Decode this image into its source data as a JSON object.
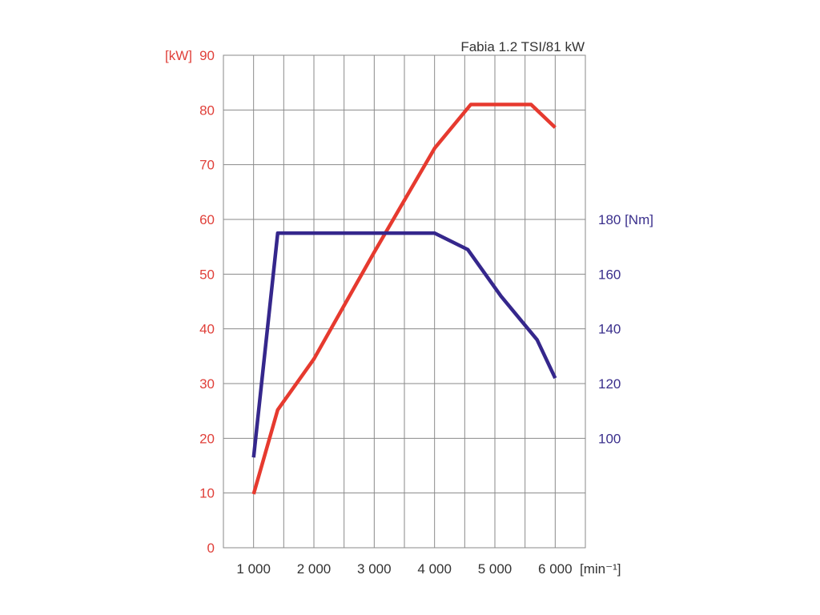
{
  "chart_data": {
    "type": "line",
    "title": "Fabia 1.2 TSI/81 kW",
    "x_axis": {
      "range": [
        500,
        6500
      ],
      "ticks": [
        1000,
        2000,
        3000,
        4000,
        5000,
        6000
      ],
      "tick_labels": [
        "1 000",
        "2 000",
        "3 000",
        "4 000",
        "5 000",
        "6 000"
      ],
      "unit_label": "[min⁻¹]"
    },
    "y_left": {
      "range": [
        0,
        90
      ],
      "ticks": [
        0,
        10,
        20,
        30,
        40,
        50,
        60,
        70,
        80,
        90
      ],
      "tick_labels": [
        "0",
        "10",
        "20",
        "30",
        "40",
        "50",
        "60",
        "70",
        "80",
        "90"
      ],
      "unit_label": "[kW]",
      "color": "#e0403a"
    },
    "y_right": {
      "range": [
        60,
        240
      ],
      "ticks": [
        100,
        120,
        140,
        160,
        180
      ],
      "tick_labels": [
        "100",
        "120",
        "140",
        "160",
        "180 [Nm]"
      ],
      "color": "#3a2f8c"
    },
    "grid": true,
    "series": [
      {
        "axis": "left",
        "color": "#e63a2f",
        "x": [
          1000,
          1400,
          2000,
          3000,
          4000,
          4600,
          5600,
          6000
        ],
        "y": [
          9.8,
          25.2,
          34.5,
          54,
          73,
          81,
          81,
          76.8
        ]
      },
      {
        "axis": "right",
        "color": "#35278c",
        "x": [
          1000,
          1400,
          2000,
          3000,
          4000,
          4550,
          5100,
          5700,
          6000
        ],
        "y": [
          93,
          175,
          175,
          175,
          175,
          169,
          152,
          136,
          122
        ]
      }
    ]
  }
}
